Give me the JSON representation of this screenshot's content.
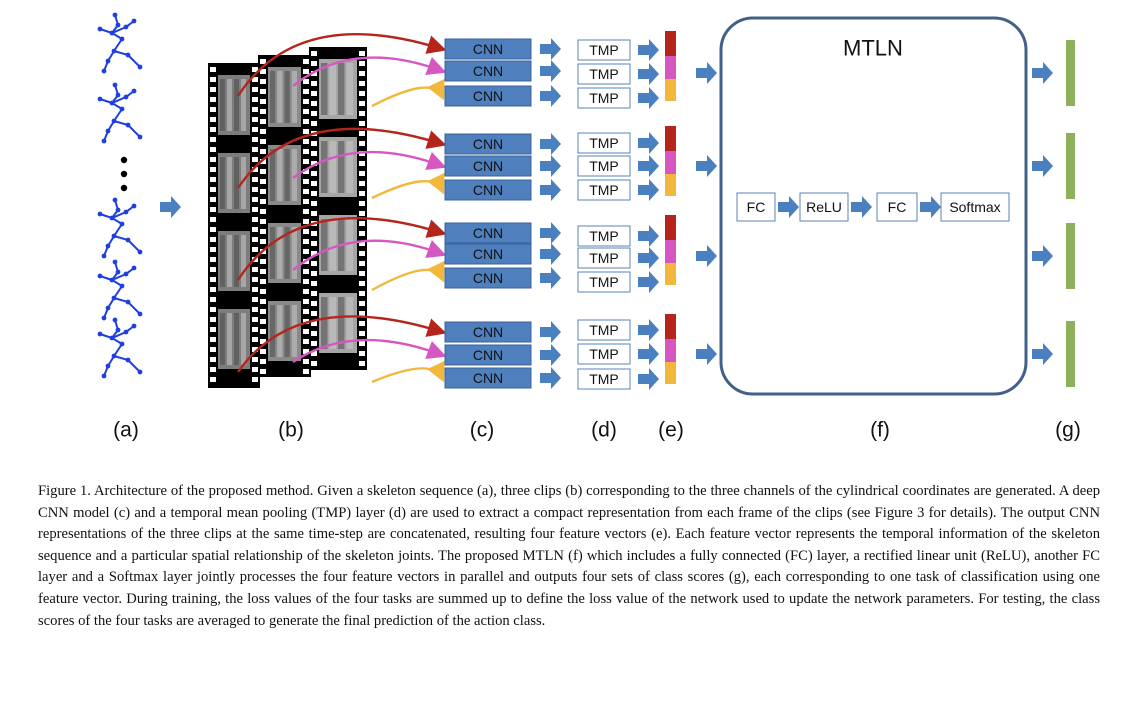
{
  "figure": {
    "cnn_label": "CNN",
    "tmp_label": "TMP",
    "mtln_title": "MTLN",
    "mtln_layers": [
      "FC",
      "ReLU",
      "FC",
      "Softmax"
    ],
    "panel_labels": [
      "(a)",
      "(b)",
      "(c)",
      "(d)",
      "(e)",
      "(f)",
      "(g)"
    ],
    "group_count": 4,
    "clips_per_group": 3
  },
  "colors": {
    "skeleton": "#1f3fe0",
    "arrow_fill": "#4a7fc0",
    "cnn_fill": "#4f7fbd",
    "cnn_border": "#3a6399",
    "tmp_border": "#5a84b8",
    "clip_red": "#b5251c",
    "clip_magenta": "#d657c2",
    "clip_yellow": "#f1b83c",
    "output_green": "#8db15a",
    "mtln_border": "#41608a"
  },
  "caption": "Figure 1. Architecture of the proposed method. Given a skeleton sequence (a), three clips (b) corresponding to the three channels of the cylindrical coordinates are generated. A deep CNN model (c) and a temporal mean pooling (TMP) layer (d) are used to extract a compact representation from each frame of the clips (see Figure 3 for details). The output CNN representations of the three clips at the same time-step are concatenated, resulting four feature vectors (e). Each feature vector represents the temporal information of the skeleton sequence and a particular spatial relationship of the skeleton joints. The proposed MTLN (f) which includes a fully connected (FC) layer, a rectified linear unit (ReLU), another FC layer and a Softmax layer jointly processes the four feature vectors in parallel and outputs four sets of class scores (g), each corresponding to one task of classification using one feature vector. During training, the loss values of the four tasks are summed up to define the loss value of the network used to update the network parameters. For testing, the class scores of the four tasks are averaged to generate the final prediction of the action class."
}
